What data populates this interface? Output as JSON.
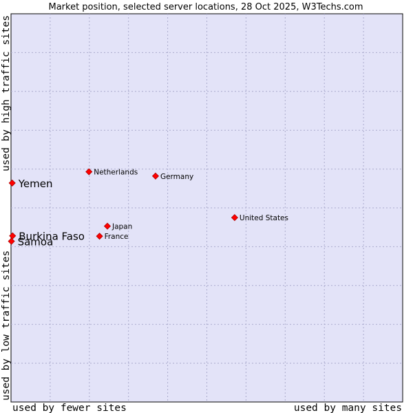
{
  "chart_data": {
    "type": "scatter",
    "title": "Market position, selected server locations, 28 Oct 2025, W3Techs.com",
    "xlabel_low": "used by fewer sites",
    "xlabel_high": "used by many sites",
    "ylabel_low": "used by low traffic sites",
    "ylabel_high": "used by high traffic sites",
    "xlim": [
      0,
      100
    ],
    "ylim": [
      0,
      100
    ],
    "grid": true,
    "colors": {
      "plot_bg": "#e3e3f8",
      "grid": "#aaaacc",
      "marker": "#ff0000",
      "marker_edge": "#aa0000"
    },
    "points": [
      {
        "label": "Netherlands",
        "x": 19.9,
        "y": 59.3,
        "size": "small"
      },
      {
        "label": "Germany",
        "x": 36.9,
        "y": 58.2,
        "size": "small"
      },
      {
        "label": "Yemen",
        "x": 0.3,
        "y": 56.4,
        "size": "large"
      },
      {
        "label": "United States",
        "x": 57.1,
        "y": 47.5,
        "size": "small"
      },
      {
        "label": "Japan",
        "x": 24.6,
        "y": 45.3,
        "size": "small"
      },
      {
        "label": "France",
        "x": 22.6,
        "y": 42.7,
        "size": "small"
      },
      {
        "label": "Burkina Faso",
        "x": 0.4,
        "y": 42.8,
        "size": "large"
      },
      {
        "label": "Samoa",
        "x": 0.1,
        "y": 41.4,
        "size": "large"
      }
    ]
  }
}
